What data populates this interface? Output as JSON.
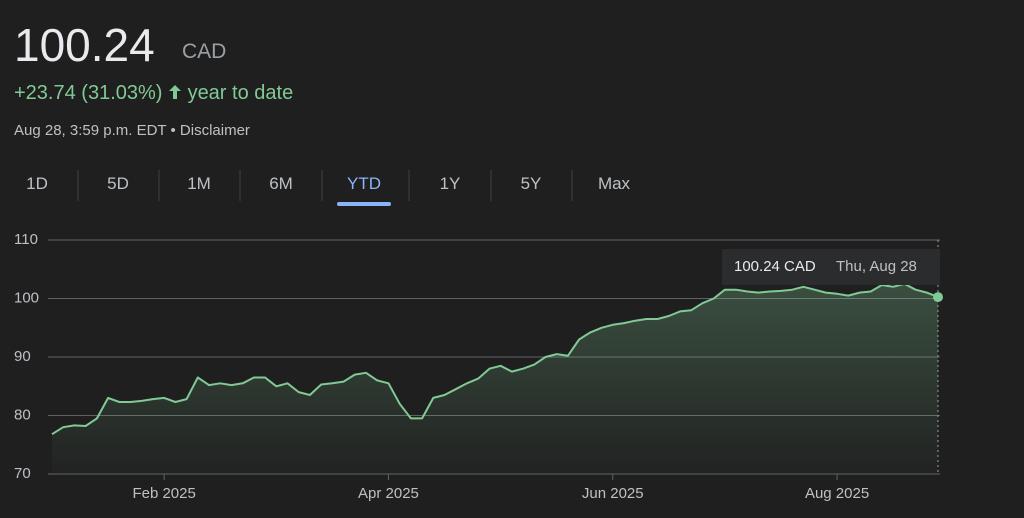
{
  "header": {
    "price": "100.24",
    "currency": "CAD",
    "change": "+23.74 (31.03%)",
    "period": "year to date",
    "timestamp": "Aug 28, 3:59 p.m. EDT",
    "separator": "•",
    "disclaimer": "Disclaimer"
  },
  "tabs": {
    "items": [
      "1D",
      "5D",
      "1M",
      "6M",
      "YTD",
      "1Y",
      "5Y",
      "Max"
    ],
    "active": "YTD"
  },
  "tooltip": {
    "price": "100.24 CAD",
    "date": "Thu, Aug 28"
  },
  "chart_data": {
    "type": "line",
    "color": "#81c995",
    "grid": true,
    "ylim": [
      70,
      110
    ],
    "yticks": [
      70,
      80,
      90,
      100,
      110
    ],
    "categories": [
      null,
      null,
      null,
      null,
      null,
      null,
      null,
      null,
      null,
      null,
      "Feb 2025",
      null,
      null,
      null,
      null,
      null,
      null,
      null,
      null,
      null,
      null,
      null,
      null,
      null,
      null,
      null,
      null,
      null,
      null,
      null,
      "Apr 2025",
      null,
      null,
      null,
      null,
      null,
      null,
      null,
      null,
      null,
      null,
      null,
      null,
      null,
      null,
      null,
      null,
      null,
      null,
      null,
      "Jun 2025",
      null,
      null,
      null,
      null,
      null,
      null,
      null,
      null,
      null,
      null,
      null,
      null,
      null,
      null,
      null,
      null,
      null,
      null,
      null,
      "Aug 2025",
      null,
      null,
      null,
      null,
      null,
      null,
      null,
      null,
      null
    ],
    "values": [
      76.8,
      78,
      78.3,
      78.2,
      79.5,
      83,
      82.3,
      82.3,
      82.5,
      82.8,
      83,
      82.3,
      82.8,
      86.5,
      85.2,
      85.5,
      85.2,
      85.5,
      86.5,
      86.5,
      85,
      85.5,
      84,
      83.5,
      85.3,
      85.5,
      85.8,
      87,
      87.3,
      86,
      85.5,
      82,
      79.5,
      79.5,
      83,
      83.5,
      84.5,
      85.5,
      86.3,
      88,
      88.5,
      87.5,
      88,
      88.7,
      90,
      90.5,
      90.2,
      93,
      94.2,
      95,
      95.5,
      95.8,
      96.2,
      96.5,
      96.5,
      97,
      97.8,
      98,
      99.2,
      100,
      101.5,
      101.5,
      101.2,
      101,
      101.2,
      101.3,
      101.5,
      102,
      101.5,
      101,
      100.8,
      100.5,
      101,
      101.2,
      102.3,
      102,
      102.5,
      101.5,
      101,
      100.24
    ]
  }
}
